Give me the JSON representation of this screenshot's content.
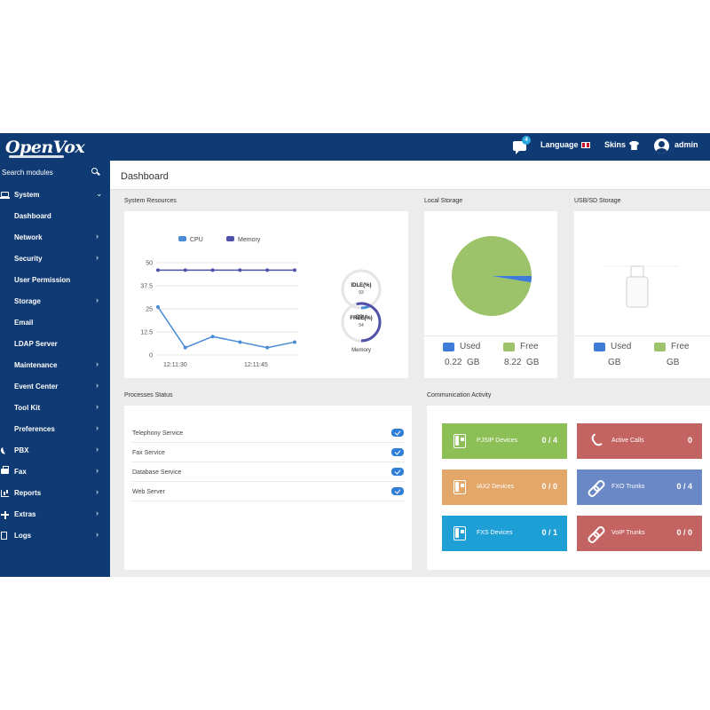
{
  "app": {
    "logo_text": "OpenVox"
  },
  "topbar": {
    "message_count": "4",
    "language_label": "Language",
    "skins_label": "Skins",
    "user_label": "admin"
  },
  "sidebar": {
    "search_placeholder": "Search modules",
    "items": [
      {
        "key": "system",
        "label": "System",
        "chev": "⌄",
        "level": 0,
        "icon": "laptop-icon"
      },
      {
        "key": "dashboard",
        "label": "Dashboard",
        "chev": "",
        "level": 1
      },
      {
        "key": "network",
        "label": "Network",
        "chev": "›",
        "level": 1
      },
      {
        "key": "security",
        "label": "Security",
        "chev": "›",
        "level": 1
      },
      {
        "key": "user-permission",
        "label": "User Permission",
        "chev": "",
        "level": 1
      },
      {
        "key": "storage",
        "label": "Storage",
        "chev": "›",
        "level": 1
      },
      {
        "key": "email",
        "label": "Email",
        "chev": "",
        "level": 1
      },
      {
        "key": "ldap-server",
        "label": "LDAP Server",
        "chev": "",
        "level": 1
      },
      {
        "key": "maintenance",
        "label": "Maintenance",
        "chev": "›",
        "level": 1
      },
      {
        "key": "event-center",
        "label": "Event Center",
        "chev": "›",
        "level": 1
      },
      {
        "key": "tool-kit",
        "label": "Tool Kit",
        "chev": "›",
        "level": 1
      },
      {
        "key": "preferences",
        "label": "Preferences",
        "chev": "›",
        "level": 1
      },
      {
        "key": "pbx",
        "label": "PBX",
        "chev": "›",
        "level": 0,
        "icon": "phone-icon"
      },
      {
        "key": "fax",
        "label": "Fax",
        "chev": "›",
        "level": 0,
        "icon": "fax-icon"
      },
      {
        "key": "reports",
        "label": "Reports",
        "chev": "›",
        "level": 0,
        "icon": "chart-icon"
      },
      {
        "key": "extras",
        "label": "Extras",
        "chev": "›",
        "level": 0,
        "icon": "plus-icon"
      },
      {
        "key": "logs",
        "label": "Logs",
        "chev": "›",
        "level": 0,
        "icon": "file-icon"
      }
    ]
  },
  "page": {
    "title": "Dashboard"
  },
  "system_resources": {
    "title": "System Resources",
    "cpu_gauge": {
      "label": "IDLE(%)",
      "value": "93",
      "caption": "CPU",
      "fraction": 0.07
    },
    "memory_gauge": {
      "label": "FREE(%)",
      "value": "54",
      "caption": "Memory",
      "fraction": 0.54
    }
  },
  "chart_data": {
    "type": "line",
    "series": [
      {
        "name": "CPU",
        "values": [
          26,
          4,
          10,
          7,
          4,
          7
        ]
      },
      {
        "name": "Memory",
        "values": [
          46,
          46,
          46,
          46,
          46,
          46
        ]
      }
    ],
    "x_tick_labels": [
      "12:11:30",
      "12:11:45"
    ],
    "y_ticks": [
      "0",
      "12.5",
      "25",
      "37.5",
      "50"
    ],
    "ylim": [
      0,
      50
    ],
    "legend_position": "top",
    "grid": true,
    "colors": {
      "CPU": "#4a8bd6",
      "Memory": "#4f52a8"
    }
  },
  "local_storage": {
    "title": "Local Storage",
    "used_label": "Used",
    "free_label": "Free",
    "used_value": "0.22  GB",
    "free_value": "8.22  GB",
    "used_value_num": 0.22,
    "free_value_num": 8.22,
    "used_color": "#3d7bd6",
    "free_color": "#9cc26a"
  },
  "usb_storage": {
    "title": "USB/SD Storage",
    "used_label": "Used",
    "free_label": "Free",
    "used_value": "GB",
    "free_value": "GB"
  },
  "processes": {
    "title": "Processes Status",
    "items": [
      {
        "name": "Telephony Service"
      },
      {
        "name": "Fax Service"
      },
      {
        "name": "Database Service"
      },
      {
        "name": "Web Server"
      }
    ]
  },
  "communication": {
    "title": "Communication Activity",
    "tiles": [
      {
        "key": "pjsip-devices",
        "name": "PJSIP Devices",
        "value": "0 / 4",
        "color": "#8cbf56",
        "icon": "device-icon"
      },
      {
        "key": "active-calls",
        "name": "Active Calls",
        "value": "0",
        "color": "#c46462",
        "icon": "handset-icon"
      },
      {
        "key": "iax2-devices",
        "name": "IAX2 Devices",
        "value": "0 / 0",
        "color": "#e3a76a",
        "icon": "device-icon"
      },
      {
        "key": "fxo-trunks",
        "name": "FXO Trunks",
        "value": "0 / 4",
        "color": "#6b88c6",
        "icon": "link-icon"
      },
      {
        "key": "fxs-devices",
        "name": "FXS Devices",
        "value": "0 / 1",
        "color": "#1e9fd6",
        "icon": "device-icon"
      },
      {
        "key": "voip-trunks",
        "name": "VoIP Trunks",
        "value": "0 / 0",
        "color": "#c46462",
        "icon": "link-icon"
      }
    ]
  }
}
